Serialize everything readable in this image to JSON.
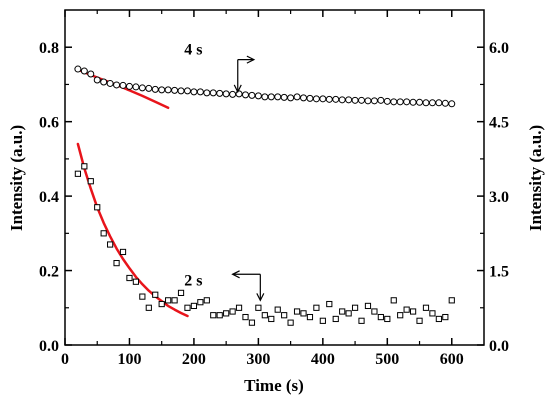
{
  "chart_data": {
    "type": "scatter",
    "title": "",
    "xlabel": "Time (s)",
    "ylabel_left": "Intensity (a.u.)",
    "ylabel_right": "Intensity (a.u.)",
    "xlim": [
      0,
      650
    ],
    "ylim_left": [
      0,
      0.9
    ],
    "ylim_right": [
      0,
      6.75
    ],
    "x_ticks": [
      "0",
      "100",
      "200",
      "300",
      "400",
      "500",
      "600"
    ],
    "y_left_ticks": [
      "0.0",
      "0.2",
      "0.4",
      "0.6",
      "0.8"
    ],
    "y_right_ticks": [
      "0.0",
      "1.5",
      "3.0",
      "4.5",
      "6.0"
    ],
    "grid": false,
    "colors": {
      "markers": "#000000",
      "fit": "#e8141b"
    },
    "series": [
      {
        "name": "2 s",
        "axis": "left",
        "marker": "square",
        "x": [
          20,
          30,
          40,
          50,
          60,
          70,
          80,
          90,
          100,
          110,
          120,
          130,
          140,
          150,
          160,
          170,
          180,
          190,
          200,
          210,
          220,
          230,
          240,
          250,
          260,
          270,
          280,
          290,
          300,
          310,
          320,
          330,
          340,
          350,
          360,
          370,
          380,
          390,
          400,
          410,
          420,
          430,
          440,
          450,
          460,
          470,
          480,
          490,
          500,
          510,
          520,
          530,
          540,
          550,
          560,
          570,
          580,
          590,
          600
        ],
        "values": [
          0.46,
          0.48,
          0.44,
          0.37,
          0.3,
          0.27,
          0.22,
          0.25,
          0.18,
          0.17,
          0.13,
          0.1,
          0.135,
          0.11,
          0.12,
          0.12,
          0.14,
          0.1,
          0.105,
          0.115,
          0.12,
          0.08,
          0.08,
          0.085,
          0.09,
          0.1,
          0.075,
          0.06,
          0.1,
          0.08,
          0.07,
          0.095,
          0.08,
          0.06,
          0.09,
          0.085,
          0.075,
          0.1,
          0.065,
          0.11,
          0.07,
          0.09,
          0.085,
          0.1,
          0.065,
          0.105,
          0.09,
          0.075,
          0.07,
          0.12,
          0.08,
          0.095,
          0.09,
          0.065,
          0.1,
          0.085,
          0.07,
          0.075,
          0.12
        ]
      },
      {
        "name": "4 s",
        "axis": "right",
        "marker": "circle",
        "x": [
          20,
          30,
          40,
          50,
          60,
          70,
          80,
          90,
          100,
          110,
          120,
          130,
          140,
          150,
          160,
          170,
          180,
          190,
          200,
          210,
          220,
          230,
          240,
          250,
          260,
          270,
          280,
          290,
          300,
          310,
          320,
          330,
          340,
          350,
          360,
          370,
          380,
          390,
          400,
          410,
          420,
          430,
          440,
          450,
          460,
          470,
          480,
          490,
          500,
          510,
          520,
          530,
          540,
          550,
          560,
          570,
          580,
          590,
          600
        ],
        "values": [
          5.56,
          5.52,
          5.46,
          5.34,
          5.3,
          5.27,
          5.24,
          5.23,
          5.21,
          5.2,
          5.18,
          5.17,
          5.15,
          5.14,
          5.14,
          5.13,
          5.12,
          5.12,
          5.1,
          5.1,
          5.08,
          5.08,
          5.07,
          5.06,
          5.05,
          5.06,
          5.04,
          5.03,
          5.02,
          5.0,
          5.0,
          5.0,
          4.99,
          4.98,
          5.0,
          4.98,
          4.97,
          4.96,
          4.96,
          4.95,
          4.95,
          4.94,
          4.94,
          4.93,
          4.93,
          4.92,
          4.92,
          4.93,
          4.91,
          4.9,
          4.9,
          4.9,
          4.89,
          4.89,
          4.88,
          4.88,
          4.88,
          4.87,
          4.86
        ]
      }
    ],
    "fits": [
      {
        "series": "2 s",
        "axis": "left",
        "x": [
          20,
          30,
          40,
          50,
          60,
          70,
          80,
          90,
          100,
          110,
          120,
          130,
          140,
          150,
          160,
          170,
          180,
          190
        ],
        "values": [
          0.54,
          0.475,
          0.42,
          0.37,
          0.328,
          0.292,
          0.259,
          0.231,
          0.206,
          0.183,
          0.163,
          0.146,
          0.131,
          0.118,
          0.105,
          0.095,
          0.086,
          0.078
        ]
      },
      {
        "series": "4 s",
        "axis": "right",
        "x": [
          20,
          40,
          60,
          80,
          100,
          120,
          140,
          160
        ],
        "values": [
          5.55,
          5.44,
          5.34,
          5.24,
          5.13,
          5.02,
          4.9,
          4.78
        ]
      }
    ],
    "annotations": [
      {
        "text": "4 s",
        "points_to": "right"
      },
      {
        "text": "2 s",
        "points_to": "left"
      }
    ]
  }
}
